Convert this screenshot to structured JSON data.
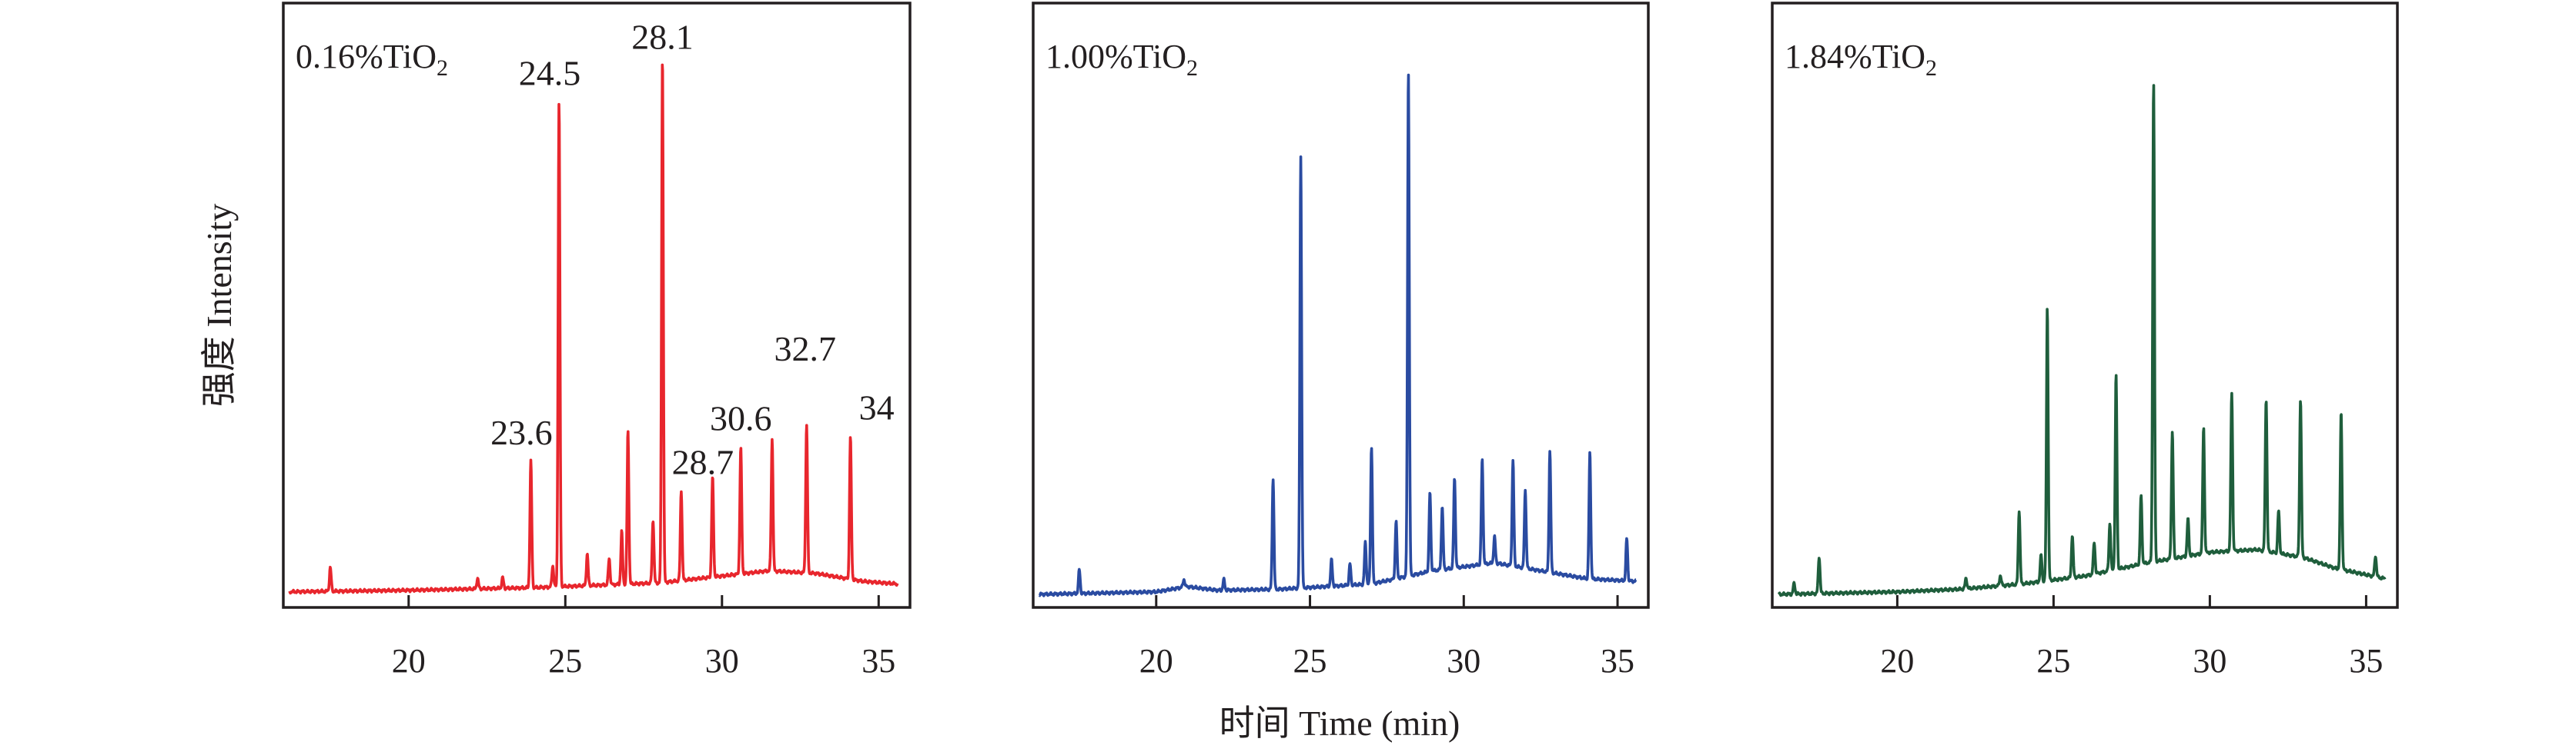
{
  "colors": {
    "axis": "#231f20",
    "panel_1": "#e8262d",
    "panel_2": "#2a4ba1",
    "panel_3": "#1f5e3c"
  },
  "axes": {
    "ylabel": "强度 Intensity",
    "xlabel": "时间 Time (min)"
  },
  "chart_data": [
    {
      "type": "line",
      "panel_label": "0.16%TiO",
      "panel_label_sub": "2",
      "xlim": [
        16,
        36
      ],
      "xticks": [
        20,
        25,
        30,
        35
      ],
      "ylim": [
        0,
        105
      ],
      "series": [
        {
          "color": "#e8262d",
          "baseline": [
            [
              16,
              1.5
            ],
            [
              20,
              1.8
            ],
            [
              24,
              2.3
            ],
            [
              28,
              3.2
            ],
            [
              30,
              4.5
            ],
            [
              31.5,
              5.5
            ],
            [
              33,
              5.0
            ],
            [
              34.5,
              3.5
            ],
            [
              35.6,
              3.0
            ]
          ],
          "peaks": [
            [
              17.5,
              4.5
            ],
            [
              22.2,
              2
            ],
            [
              23.0,
              2
            ],
            [
              23.9,
              24
            ],
            [
              24.6,
              4
            ],
            [
              24.8,
              92
            ],
            [
              25.7,
              6
            ],
            [
              26.4,
              5
            ],
            [
              26.8,
              10
            ],
            [
              27.0,
              29
            ],
            [
              27.8,
              12
            ],
            [
              28.1,
              100
            ],
            [
              28.7,
              17
            ],
            [
              29.7,
              19
            ],
            [
              30.6,
              24
            ],
            [
              31.6,
              25
            ],
            [
              32.7,
              28
            ],
            [
              34.1,
              27
            ]
          ]
        }
      ],
      "annotations": [
        {
          "x": 23.6,
          "text": "23.6"
        },
        {
          "x": 24.5,
          "text": "24.5"
        },
        {
          "x": 28.1,
          "text": "28.1"
        },
        {
          "x": 28.7,
          "text": "28.7"
        },
        {
          "x": 30.6,
          "text": "30.6"
        },
        {
          "x": 32.7,
          "text": "32.7"
        },
        {
          "x": 34,
          "text": "34"
        }
      ]
    },
    {
      "type": "line",
      "panel_label": "1.00%TiO",
      "panel_label_sub": "2",
      "xlim": [
        16,
        36
      ],
      "xticks": [
        20,
        25,
        30,
        35
      ],
      "ylim": [
        0,
        105
      ],
      "series": [
        {
          "color": "#2a4ba1",
          "baseline": [
            [
              16,
              1.0
            ],
            [
              20,
              1.5
            ],
            [
              21,
              2.5
            ],
            [
              22,
              1.8
            ],
            [
              24,
              2.0
            ],
            [
              27,
              3.0
            ],
            [
              29,
              5.5
            ],
            [
              31,
              7.0
            ],
            [
              32.5,
              5.5
            ],
            [
              34,
              4.0
            ],
            [
              35.6,
              3.5
            ]
          ],
          "peaks": [
            [
              17.5,
              4.5
            ],
            [
              20.9,
              1.5
            ],
            [
              22.2,
              2
            ],
            [
              23.8,
              21
            ],
            [
              24.7,
              82
            ],
            [
              25.7,
              5
            ],
            [
              26.3,
              4
            ],
            [
              26.8,
              8
            ],
            [
              27.0,
              26
            ],
            [
              27.8,
              11
            ],
            [
              28.2,
              96
            ],
            [
              28.9,
              15
            ],
            [
              29.3,
              12
            ],
            [
              29.7,
              17
            ],
            [
              30.6,
              20
            ],
            [
              31.0,
              5
            ],
            [
              31.6,
              20
            ],
            [
              32.0,
              15
            ],
            [
              32.8,
              23
            ],
            [
              34.1,
              24
            ],
            [
              35.3,
              8
            ]
          ]
        }
      ]
    },
    {
      "type": "line",
      "panel_label": "1.84%TiO",
      "panel_label_sub": "2",
      "xlim": [
        16,
        36
      ],
      "xticks": [
        20,
        25,
        30,
        35
      ],
      "ylim": [
        0,
        105
      ],
      "series": [
        {
          "color": "#1f5e3c",
          "baseline": [
            [
              16,
              1.0
            ],
            [
              20,
              1.5
            ],
            [
              22,
              2.0
            ],
            [
              24,
              3.0
            ],
            [
              26,
              4.5
            ],
            [
              28,
              7.0
            ],
            [
              30,
              9.0
            ],
            [
              31.5,
              9.5
            ],
            [
              33,
              8.0
            ],
            [
              34,
              6.0
            ],
            [
              35.6,
              4.0
            ]
          ],
          "peaks": [
            [
              16.7,
              2
            ],
            [
              17.5,
              7
            ],
            [
              22.2,
              2
            ],
            [
              23.3,
              2
            ],
            [
              23.9,
              14
            ],
            [
              24.6,
              5
            ],
            [
              24.8,
              52
            ],
            [
              25.6,
              8
            ],
            [
              26.3,
              6
            ],
            [
              26.8,
              9
            ],
            [
              27.0,
              37
            ],
            [
              27.8,
              13
            ],
            [
              28.2,
              91
            ],
            [
              28.8,
              24
            ],
            [
              29.3,
              7
            ],
            [
              29.8,
              24
            ],
            [
              30.7,
              30
            ],
            [
              31.8,
              29
            ],
            [
              32.2,
              8
            ],
            [
              32.9,
              30
            ],
            [
              34.2,
              30
            ],
            [
              35.3,
              4
            ]
          ]
        }
      ]
    }
  ]
}
